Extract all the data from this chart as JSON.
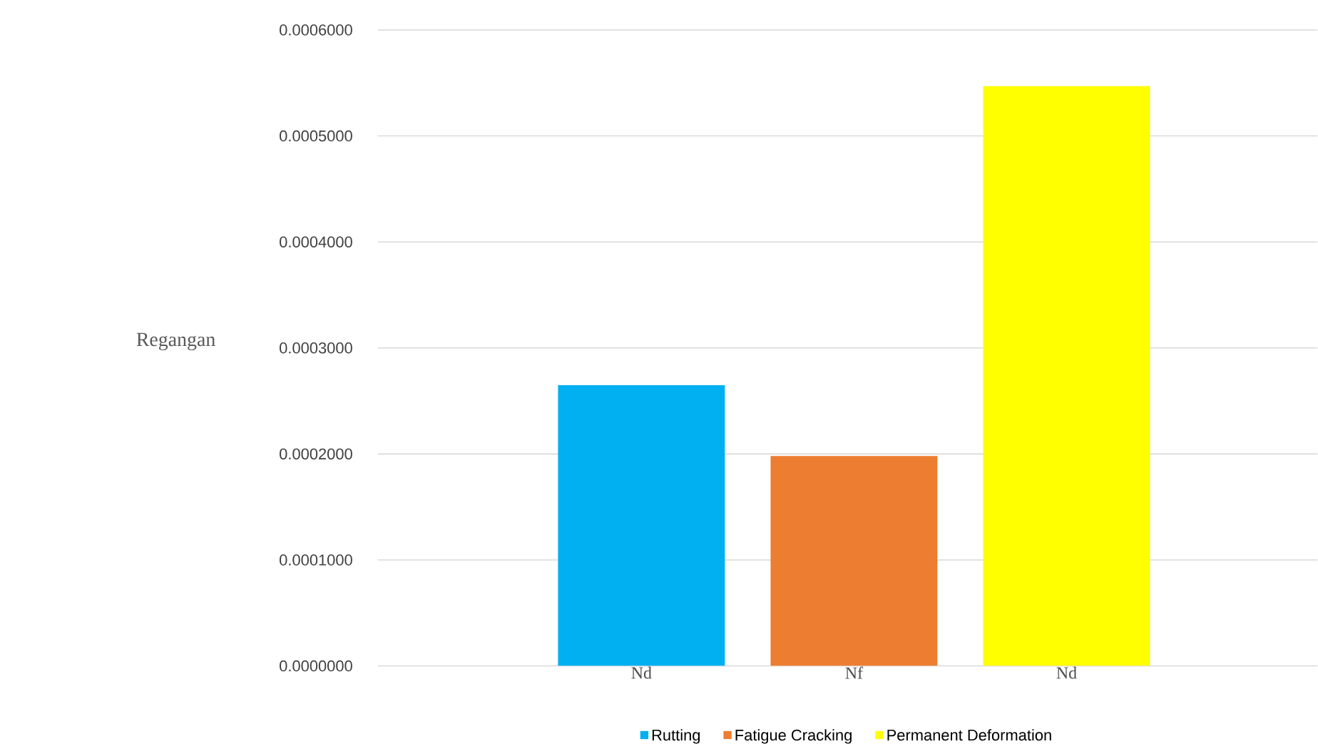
{
  "chart_data": {
    "type": "bar",
    "ylabel": "Regangan",
    "categories": [
      "Nd",
      "Nf",
      "Nd"
    ],
    "series": [
      {
        "name": "Rutting",
        "color": "#00b0f0",
        "values": [
          0.000265,
          null,
          null
        ]
      },
      {
        "name": "Fatigue Cracking",
        "color": "#ed7d31",
        "values": [
          null,
          0.000198,
          null
        ]
      },
      {
        "name": "Permanent Deformation",
        "color": "#ffff00",
        "values": [
          null,
          null,
          0.000547
        ]
      }
    ],
    "ylim": [
      0,
      0.0006
    ],
    "yticks": [
      {
        "value": 0,
        "label": "0.0000000"
      },
      {
        "value": 0.0001,
        "label": "0.0001000"
      },
      {
        "value": 0.0002,
        "label": "0.0002000"
      },
      {
        "value": 0.0003,
        "label": "0.0003000"
      },
      {
        "value": 0.0004,
        "label": "0.0004000"
      },
      {
        "value": 0.0005,
        "label": "0.0005000"
      },
      {
        "value": 0.0006,
        "label": "0.0006000"
      }
    ],
    "grid": "y",
    "legend": "bottom"
  }
}
